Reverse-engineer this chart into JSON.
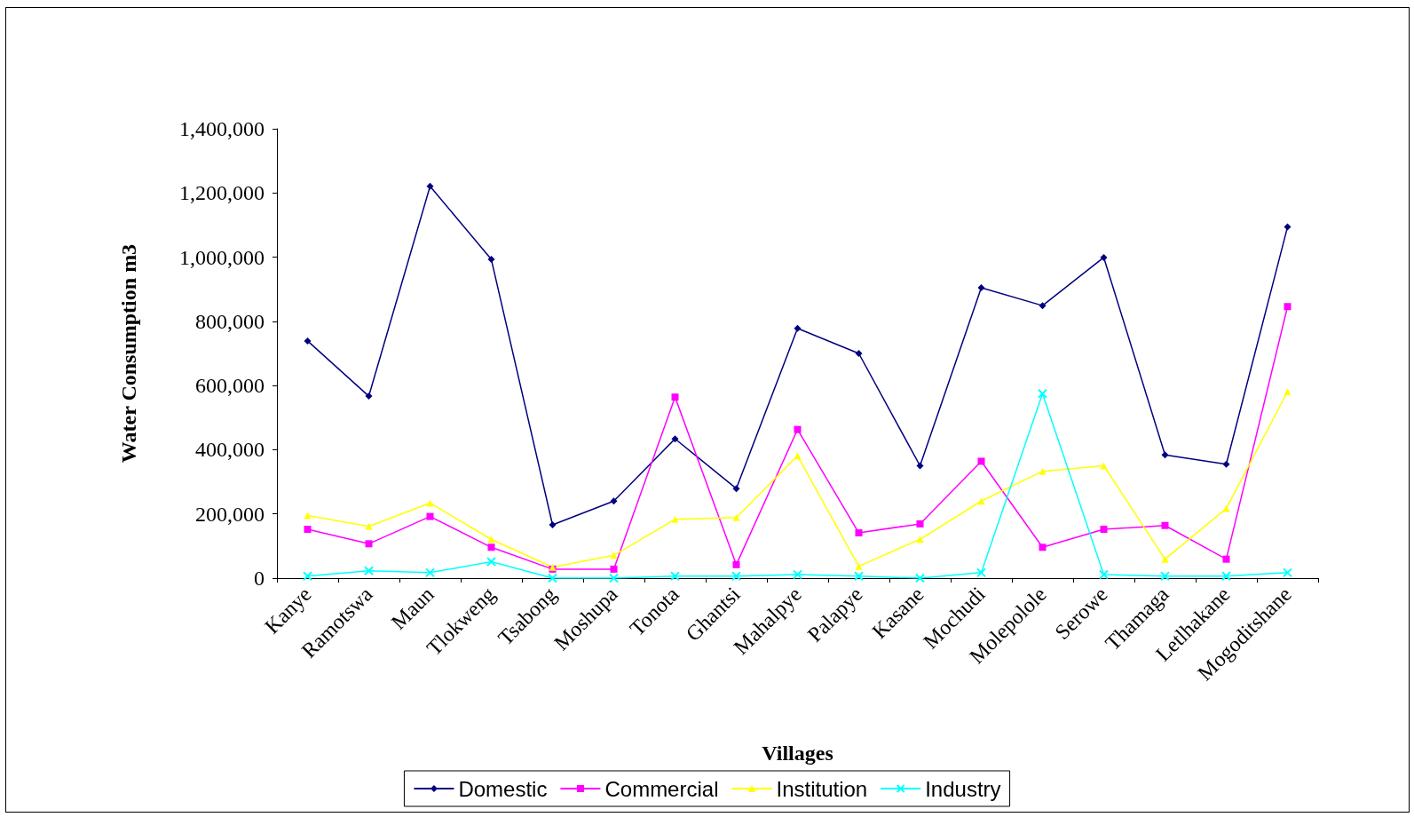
{
  "chart_data": {
    "type": "line",
    "xlabel": "Villages",
    "ylabel": "Water Consumption m3",
    "categories": [
      "Kanye",
      "Ramotswa",
      "Maun",
      "Tlokweng",
      "Tsabong",
      "Moshupa",
      "Tonota",
      "Ghantsi",
      "Mahalpye",
      "Palapye",
      "Kasane",
      "Mochudi",
      "Molepolole",
      "Serowe",
      "Thamaga",
      "Letlhakane",
      "Mogoditshane"
    ],
    "series": [
      {
        "name": "Domestic",
        "color": "#000080",
        "marker": "diamond",
        "values": [
          739000,
          567000,
          1221000,
          993000,
          166000,
          240000,
          434000,
          279000,
          778000,
          700000,
          350000,
          905000,
          849000,
          999000,
          384000,
          355000,
          1094000
        ]
      },
      {
        "name": "Commercial",
        "color": "#ff00ff",
        "marker": "square",
        "values": [
          152000,
          107000,
          192000,
          96000,
          28000,
          28000,
          564000,
          42000,
          463000,
          141000,
          169000,
          364000,
          96000,
          152000,
          164000,
          59000,
          846000
        ]
      },
      {
        "name": "Institution",
        "color": "#ffff00",
        "marker": "triangle",
        "values": [
          195000,
          161000,
          234000,
          121000,
          34000,
          71000,
          183000,
          189000,
          381000,
          37000,
          121000,
          240000,
          333000,
          350000,
          59000,
          217000,
          581000
        ]
      },
      {
        "name": "Industry",
        "color": "#00ffff",
        "marker": "cross",
        "values": [
          6000,
          23000,
          17000,
          51000,
          0,
          0,
          6000,
          6000,
          11000,
          6000,
          0,
          17000,
          575000,
          11000,
          6000,
          6000,
          17000
        ]
      }
    ],
    "ylim": [
      0,
      1400000
    ],
    "yticks": [
      0,
      {
        "value": 200000,
        "label": "200,000"
      },
      {
        "value": 400000,
        "label": "400,000"
      },
      {
        "value": 600000,
        "label": "600,000"
      },
      {
        "value": 800000,
        "label": "800,000"
      },
      {
        "value": 1000000,
        "label": "1,000,000"
      },
      {
        "value": 1200000,
        "label": "1,200,000"
      },
      {
        "value": 1400000,
        "label": "1,400,000"
      }
    ],
    "grid": false,
    "legend": "bottom",
    "line_style": "solid"
  }
}
